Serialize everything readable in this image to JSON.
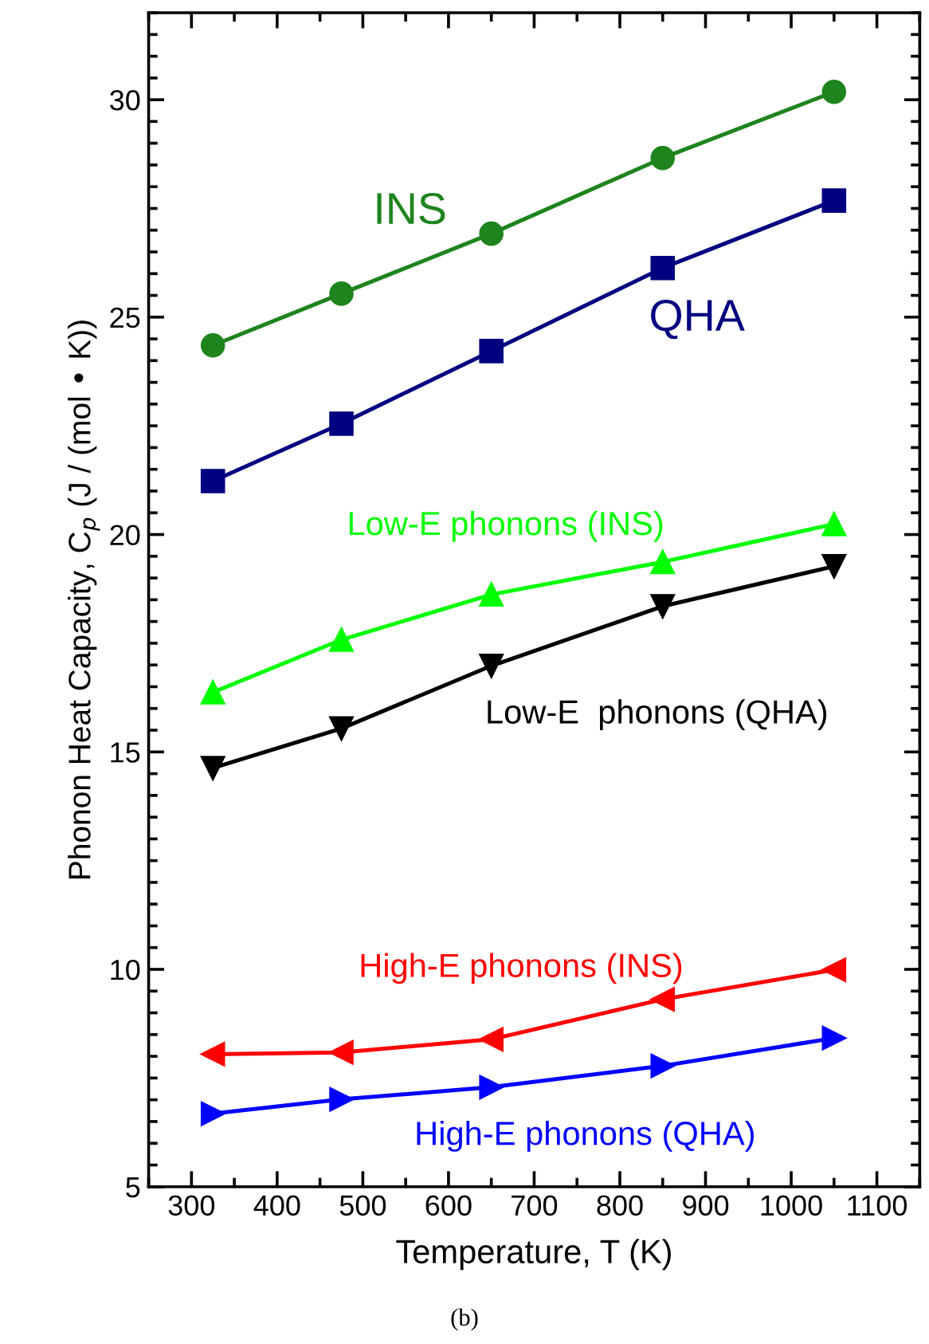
{
  "chart_data": {
    "type": "line",
    "xlabel": "Temperature, T (K)",
    "ylabel": "Phonon Heat Capacity, C$_{p}$ (J / (mol • K))",
    "x": [
      325,
      475,
      650,
      850,
      1050
    ],
    "series": [
      {
        "name": "INS",
        "color": "#1e841e",
        "marker": "circle",
        "values": [
          24.35,
          25.54,
          26.92,
          28.66,
          30.18
        ]
      },
      {
        "name": "QHA",
        "color": "#000080",
        "marker": "square",
        "values": [
          21.23,
          22.55,
          24.22,
          26.13,
          27.68
        ]
      },
      {
        "name": "Low-E phonons (INS)",
        "color": "#00ff00",
        "marker": "triangle",
        "values": [
          16.37,
          17.58,
          18.62,
          19.37,
          20.24
        ]
      },
      {
        "name": "Low-E  phonons (QHA)",
        "color": "#000000",
        "marker": "triangle-down",
        "values": [
          14.63,
          15.54,
          16.98,
          18.35,
          19.27
        ]
      },
      {
        "name": "High-E phonons (INS)",
        "color": "#ff0000",
        "marker": "triangle-left",
        "values": [
          8.05,
          8.09,
          8.39,
          9.31,
          9.99
        ]
      },
      {
        "name": "High-E phonons (QHA)",
        "color": "#0000ff",
        "marker": "triangle-right",
        "values": [
          6.68,
          7.01,
          7.29,
          7.78,
          8.42
        ]
      }
    ],
    "xlim": [
      250,
      1150
    ],
    "xticks": [
      300,
      400,
      500,
      600,
      700,
      800,
      900,
      1000,
      1100
    ],
    "ylim": [
      5,
      32
    ],
    "yticks": [
      5,
      10,
      15,
      20,
      25,
      30
    ],
    "annotations": [
      "(b)"
    ],
    "grid": false,
    "legend": false,
    "line_style": "solid"
  }
}
